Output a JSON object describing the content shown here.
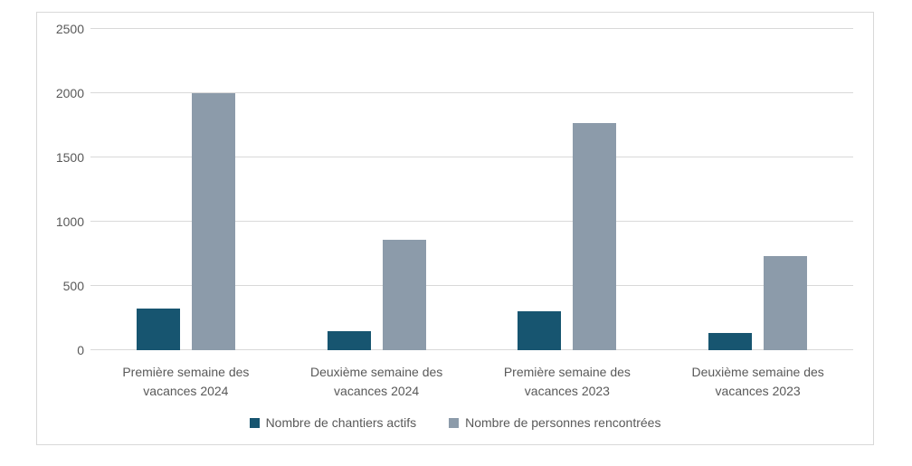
{
  "chart_data": {
    "type": "bar",
    "title": "",
    "xlabel": "",
    "ylabel": "",
    "categories": [
      "Première semaine des vacances 2024",
      "Deuxième semaine des vacances 2024",
      "Première semaine des vacances 2023",
      "Deuxième semaine des vacances 2023"
    ],
    "series": [
      {
        "name": "Nombre de chantiers actifs",
        "color": "#175570",
        "values": [
          325,
          150,
          300,
          135
        ]
      },
      {
        "name": "Nombre de personnes rencontrées",
        "color": "#8c9baa",
        "values": [
          2000,
          860,
          1765,
          730
        ]
      }
    ],
    "ylim": [
      0,
      2500
    ],
    "yticks": [
      0,
      500,
      1000,
      1500,
      2000,
      2500
    ],
    "grid": true,
    "legend_position": "bottom"
  },
  "style": {
    "gridline_color": "#d9d9d9",
    "frame_border_color": "#d8d8d8",
    "text_color": "#595959",
    "background_color": "#ffffff"
  }
}
